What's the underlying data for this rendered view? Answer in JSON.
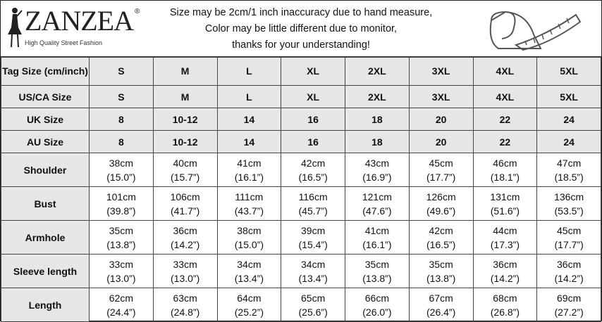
{
  "logo": {
    "brand": "ZANZEA",
    "registered": "®",
    "tagline": "High Quality Street Fashion"
  },
  "notice": [
    "Size may be 2cm/1 inch inaccuracy due to hand measure,",
    "Color may be little different due to monitor,",
    "thanks for your understanding!"
  ],
  "table": {
    "size_rows": [
      {
        "label": "Tag Size (cm/inch)",
        "values": [
          "S",
          "M",
          "L",
          "XL",
          "2XL",
          "3XL",
          "4XL",
          "5XL"
        ]
      },
      {
        "label": "US/CA Size",
        "values": [
          "S",
          "M",
          "L",
          "XL",
          "2XL",
          "3XL",
          "4XL",
          "5XL"
        ]
      },
      {
        "label": "UK Size",
        "values": [
          "8",
          "10-12",
          "14",
          "16",
          "18",
          "20",
          "22",
          "24"
        ]
      },
      {
        "label": "AU Size",
        "values": [
          "8",
          "10-12",
          "14",
          "16",
          "18",
          "20",
          "22",
          "24"
        ]
      }
    ],
    "measure_rows": [
      {
        "label": "Shoulder",
        "cm": [
          "38cm",
          "40cm",
          "41cm",
          "42cm",
          "43cm",
          "45cm",
          "46cm",
          "47cm"
        ],
        "inch": [
          "(15.0”)",
          "(15.7”)",
          "(16.1”)",
          "(16.5”)",
          "(16.9”)",
          "(17.7”)",
          "(18.1”)",
          "(18.5”)"
        ]
      },
      {
        "label": "Bust",
        "cm": [
          "101cm",
          "106cm",
          "111cm",
          "116cm",
          "121cm",
          "126cm",
          "131cm",
          "136cm"
        ],
        "inch": [
          "(39.8”)",
          "(41.7”)",
          "(43.7”)",
          "(45.7”)",
          "(47.6”)",
          "(49.6”)",
          "(51.6”)",
          "(53.5”)"
        ]
      },
      {
        "label": "Armhole",
        "cm": [
          "35cm",
          "36cm",
          "38cm",
          "39cm",
          "41cm",
          "42cm",
          "44cm",
          "45cm"
        ],
        "inch": [
          "(13.8”)",
          "(14.2”)",
          "(15.0”)",
          "(15.4”)",
          "(16.1”)",
          "(16.5”)",
          "(17.3”)",
          "(17.7”)"
        ]
      },
      {
        "label": "Sleeve length",
        "cm": [
          "33cm",
          "33cm",
          "34cm",
          "34cm",
          "35cm",
          "35cm",
          "36cm",
          "36cm"
        ],
        "inch": [
          "(13.0”)",
          "(13.0”)",
          "(13.4”)",
          "(13.4”)",
          "(13.8”)",
          "(13.8”)",
          "(14.2”)",
          "(14.2”)"
        ]
      },
      {
        "label": "Length",
        "cm": [
          "62cm",
          "63cm",
          "64cm",
          "65cm",
          "66cm",
          "67cm",
          "68cm",
          "69cm"
        ],
        "inch": [
          "(24.4”)",
          "(24.8”)",
          "(25.2”)",
          "(25.6”)",
          "(26.0”)",
          "(26.4”)",
          "(26.8”)",
          "(27.2”)"
        ]
      }
    ]
  },
  "colors": {
    "label_bg": "#e6e6e6",
    "border": "#444444"
  }
}
